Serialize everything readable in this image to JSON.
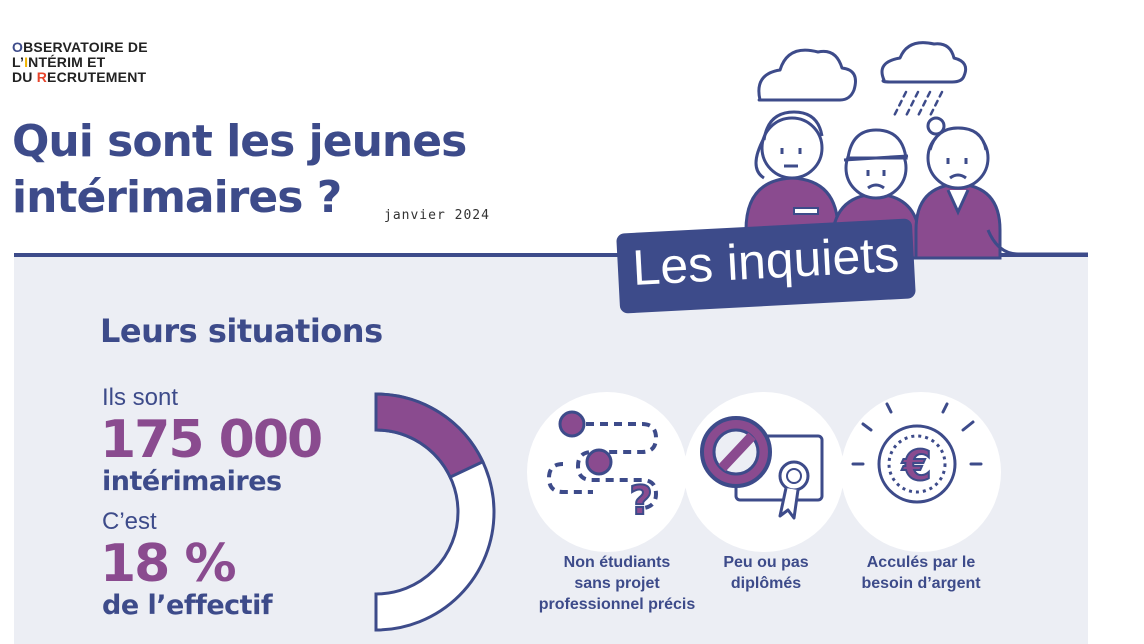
{
  "header": {
    "logo_line1_first": "O",
    "logo_line1_rest": "BSERVATOIRE DE",
    "logo_line2_first": "L’",
    "logo_line2_accent": "I",
    "logo_line2_rest": "NTÉRIM ET",
    "logo_line3_first": "DU ",
    "logo_line3_accent": "R",
    "logo_line3_rest": "ECRUTEMENT",
    "title_line1": "Qui sont les jeunes",
    "title_line2": "intérimaires ?",
    "date": "janvier 2024"
  },
  "tag": {
    "label": "Les inquiets"
  },
  "section": {
    "heading": "Leurs situations",
    "count_intro": "Ils sont",
    "count_value": "175 000",
    "count_unit": "intérimaires",
    "share_intro": "C’est",
    "share_value": "18 %",
    "share_unit": "de l’effectif",
    "share_fraction": 0.18
  },
  "traits": [
    {
      "icon": "path-question-icon",
      "caption_lines": [
        "Non étudiants",
        "sans projet",
        "professionnel précis"
      ]
    },
    {
      "icon": "no-diploma-icon",
      "caption_lines": [
        "Peu ou pas",
        "diplômés"
      ]
    },
    {
      "icon": "euro-coin-icon",
      "caption_lines": [
        "Acculés par le",
        "besoin d’argent"
      ]
    }
  ],
  "colors": {
    "navy": "#3d4b8a",
    "purple": "#8a4b8f",
    "panel": "#eceef4"
  }
}
